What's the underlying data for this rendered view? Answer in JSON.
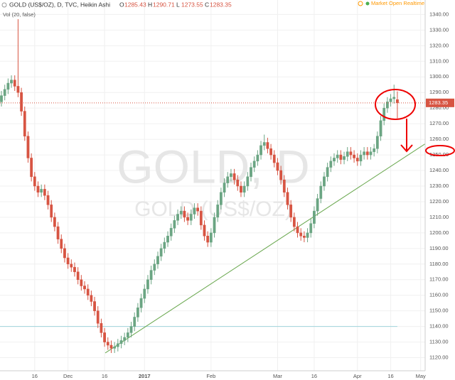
{
  "chart_data": {
    "type": "candlestick",
    "title": "GOLD (US$/OZ), D, TVC, Heikin Ashi",
    "watermark": "GOLD, D",
    "watermark_sub": "GOLD (US$/OZ)",
    "ohlc_letters": [
      "O",
      "H",
      "L",
      "C"
    ],
    "indicator": "Vol (20, false)",
    "status": "Market Open Realtime",
    "up_color": "#6ba583",
    "down_color": "#d75442",
    "grid": true,
    "ylim": [
      1111.6,
      1349.3
    ],
    "xlim": [
      -0.43,
      127.35
    ],
    "yticks": [
      {
        "value": 1120,
        "label": "1120.00"
      },
      {
        "value": 1130,
        "label": "1130.00"
      },
      {
        "value": 1140,
        "label": "1140.00"
      },
      {
        "value": 1150,
        "label": "1150.00"
      },
      {
        "value": 1160,
        "label": "1160.00"
      },
      {
        "value": 1170,
        "label": "1170.00"
      },
      {
        "value": 1180,
        "label": "1180.00"
      },
      {
        "value": 1190,
        "label": "1190.00"
      },
      {
        "value": 1200,
        "label": "1200.00"
      },
      {
        "value": 1210,
        "label": "1210.00"
      },
      {
        "value": 1220,
        "label": "1220.00"
      },
      {
        "value": 1230,
        "label": "1230.00"
      },
      {
        "value": 1240,
        "label": "1240.00"
      },
      {
        "value": 1250,
        "label": "1250.00"
      },
      {
        "value": 1260,
        "label": "1260.00"
      },
      {
        "value": 1270,
        "label": "1270.00"
      },
      {
        "value": 1280,
        "label": "1280.00"
      },
      {
        "value": 1290,
        "label": "1290.00"
      },
      {
        "value": 1300,
        "label": "1300.00"
      },
      {
        "value": 1310,
        "label": "1310.00"
      },
      {
        "value": 1320,
        "label": "1320.00"
      },
      {
        "value": 1330,
        "label": "1330.00"
      },
      {
        "value": 1340,
        "label": "1340.00"
      }
    ],
    "xticks": [
      {
        "value": 10,
        "label": "16"
      },
      {
        "value": 20,
        "label": "Dec"
      },
      {
        "value": 31,
        "label": "16"
      },
      {
        "value": 43,
        "label": "2017"
      },
      {
        "value": 63,
        "label": "Feb"
      },
      {
        "value": 83,
        "label": "Mar"
      },
      {
        "value": 94,
        "label": "16"
      },
      {
        "value": 107,
        "label": "Apr"
      },
      {
        "value": 117,
        "label": "16"
      },
      {
        "value": 126,
        "label": "May"
      }
    ],
    "hline": 1140,
    "trendline": [
      [
        31.2,
        1123
      ],
      [
        127.3,
        1257
      ]
    ],
    "open": [
      1284,
      1288,
      1292,
      1296,
      1298,
      1294,
      1290,
      1278,
      1262,
      1248,
      1236,
      1230,
      1226,
      1228,
      1224,
      1218,
      1210,
      1204,
      1196,
      1190,
      1184,
      1180,
      1178,
      1175,
      1170,
      1166,
      1164,
      1160,
      1156,
      1150,
      1142,
      1136,
      1130,
      1128,
      1126,
      1127,
      1129,
      1131,
      1133,
      1136,
      1140,
      1146,
      1152,
      1158,
      1164,
      1170,
      1176,
      1180,
      1185,
      1190,
      1194,
      1198,
      1203,
      1208,
      1212,
      1214,
      1210,
      1208,
      1212,
      1216,
      1214,
      1205,
      1198,
      1194,
      1200,
      1210,
      1218,
      1226,
      1232,
      1236,
      1238,
      1234,
      1230,
      1226,
      1230,
      1236,
      1242,
      1246,
      1250,
      1256,
      1258,
      1254,
      1250,
      1245,
      1240,
      1234,
      1226,
      1218,
      1210,
      1204,
      1200,
      1198,
      1197,
      1200,
      1206,
      1214,
      1222,
      1230,
      1236,
      1242,
      1246,
      1248,
      1250,
      1247,
      1249,
      1252,
      1250,
      1248,
      1246,
      1250,
      1252,
      1250,
      1252,
      1254,
      1262,
      1272,
      1280,
      1284,
      1286,
      1285.43
    ],
    "high": [
      1291,
      1295,
      1299,
      1301,
      1301,
      1337,
      1293,
      1281,
      1265,
      1251,
      1239,
      1233,
      1231,
      1231,
      1227,
      1221,
      1213,
      1207,
      1199,
      1193,
      1187,
      1183,
      1181,
      1178,
      1173,
      1169,
      1167,
      1163,
      1159,
      1153,
      1145,
      1139,
      1133,
      1131,
      1130,
      1132,
      1134,
      1136,
      1139,
      1143,
      1149,
      1155,
      1161,
      1167,
      1173,
      1179,
      1183,
      1188,
      1193,
      1197,
      1201,
      1206,
      1211,
      1215,
      1217,
      1217,
      1213,
      1215,
      1219,
      1219,
      1217,
      1208,
      1201,
      1203,
      1213,
      1221,
      1229,
      1235,
      1239,
      1241,
      1241,
      1237,
      1233,
      1233,
      1239,
      1245,
      1249,
      1253,
      1259,
      1263,
      1261,
      1257,
      1253,
      1248,
      1243,
      1237,
      1229,
      1221,
      1213,
      1207,
      1203,
      1201,
      1203,
      1209,
      1217,
      1225,
      1233,
      1239,
      1245,
      1249,
      1251,
      1253,
      1253,
      1252,
      1255,
      1255,
      1253,
      1251,
      1253,
      1255,
      1255,
      1255,
      1257,
      1265,
      1275,
      1283,
      1287,
      1289,
      1295,
      1290.71
    ],
    "low": [
      1281,
      1285,
      1289,
      1293,
      1291,
      1287,
      1275,
      1259,
      1245,
      1233,
      1227,
      1223,
      1223,
      1221,
      1215,
      1207,
      1201,
      1193,
      1187,
      1181,
      1177,
      1175,
      1172,
      1167,
      1163,
      1161,
      1157,
      1153,
      1147,
      1139,
      1133,
      1127,
      1125,
      1123,
      1123,
      1124,
      1126,
      1128,
      1130,
      1133,
      1137,
      1143,
      1149,
      1155,
      1161,
      1167,
      1173,
      1177,
      1182,
      1187,
      1191,
      1195,
      1200,
      1205,
      1209,
      1207,
      1205,
      1205,
      1209,
      1211,
      1202,
      1195,
      1191,
      1191,
      1197,
      1207,
      1215,
      1223,
      1229,
      1233,
      1231,
      1227,
      1223,
      1223,
      1227,
      1233,
      1239,
      1243,
      1247,
      1253,
      1251,
      1247,
      1242,
      1237,
      1231,
      1223,
      1215,
      1207,
      1201,
      1197,
      1195,
      1194,
      1194,
      1197,
      1203,
      1211,
      1219,
      1227,
      1233,
      1239,
      1243,
      1245,
      1244,
      1244,
      1246,
      1247,
      1245,
      1243,
      1243,
      1247,
      1247,
      1247,
      1249,
      1251,
      1259,
      1269,
      1277,
      1281,
      1283,
      1273.55
    ],
    "close": [
      1288,
      1292,
      1296,
      1298,
      1294,
      1290,
      1278,
      1262,
      1248,
      1236,
      1230,
      1226,
      1228,
      1224,
      1218,
      1210,
      1204,
      1196,
      1190,
      1184,
      1180,
      1178,
      1175,
      1170,
      1166,
      1164,
      1160,
      1156,
      1150,
      1142,
      1136,
      1130,
      1128,
      1126,
      1127,
      1129,
      1131,
      1133,
      1136,
      1140,
      1146,
      1152,
      1158,
      1164,
      1170,
      1176,
      1180,
      1185,
      1190,
      1194,
      1198,
      1203,
      1208,
      1212,
      1214,
      1210,
      1208,
      1212,
      1216,
      1214,
      1205,
      1198,
      1194,
      1200,
      1210,
      1218,
      1226,
      1232,
      1236,
      1238,
      1234,
      1230,
      1226,
      1230,
      1236,
      1242,
      1246,
      1250,
      1256,
      1258,
      1254,
      1250,
      1245,
      1240,
      1234,
      1226,
      1218,
      1210,
      1204,
      1200,
      1198,
      1197,
      1200,
      1206,
      1214,
      1222,
      1230,
      1236,
      1242,
      1246,
      1248,
      1250,
      1247,
      1249,
      1252,
      1250,
      1248,
      1246,
      1250,
      1252,
      1250,
      1252,
      1254,
      1262,
      1272,
      1280,
      1284,
      1286,
      1287,
      1283.35
    ]
  }
}
